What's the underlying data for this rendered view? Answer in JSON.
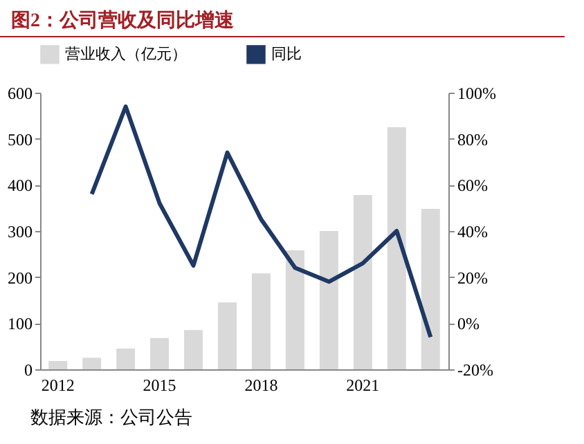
{
  "chart_data": {
    "type": "bar",
    "title": "图2：公司营收及同比增速",
    "categories": [
      "2012",
      null,
      null,
      "2015",
      null,
      null,
      "2018",
      null,
      null,
      "2021",
      null,
      null
    ],
    "series": [
      {
        "name": "营业收入（亿元）",
        "color": "#d9d9d9",
        "values": [
          18,
          25,
          45,
          68,
          85,
          145,
          208,
          258,
          300,
          378,
          525,
          348
        ]
      },
      {
        "name": "同比",
        "type": "line",
        "axis": "y2",
        "color": "#1f3864",
        "values": [
          null,
          56,
          94,
          52,
          25,
          74,
          45,
          24,
          18,
          26,
          40,
          -6
        ]
      }
    ],
    "ylim": [
      0,
      600
    ],
    "yticks": [
      0,
      100,
      200,
      300,
      400,
      500,
      600
    ],
    "y2lim": [
      -20,
      100
    ],
    "y2ticks": [
      {
        "value": -20,
        "label": "-20%"
      },
      {
        "value": 0,
        "label": "0%"
      },
      {
        "value": 20,
        "label": "20%"
      },
      {
        "value": 40,
        "label": "40%"
      },
      {
        "value": 60,
        "label": "60%"
      },
      {
        "value": 80,
        "label": "80%"
      },
      {
        "value": 100,
        "label": "100%"
      }
    ],
    "legend": "top",
    "grid": false,
    "annotations": [
      "数据来源：公司公告"
    ]
  }
}
